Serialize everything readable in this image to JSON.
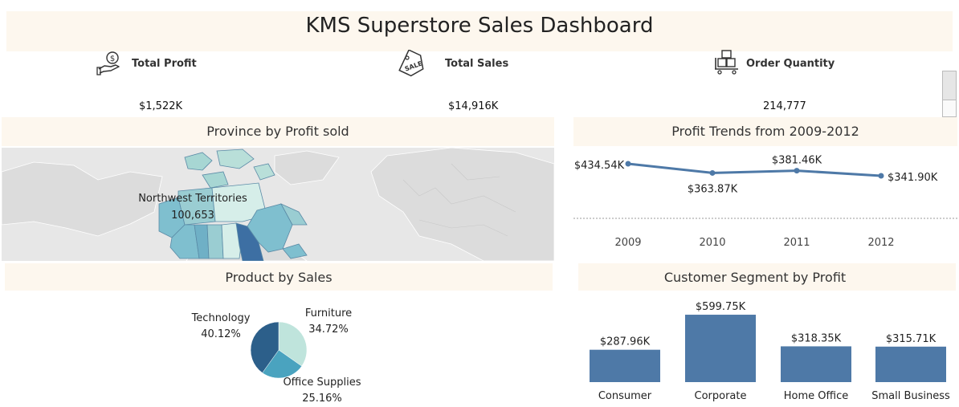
{
  "dashboard": {
    "title": "KMS Superstore Sales Dashboard"
  },
  "kpis": {
    "profit": {
      "label": "Total Profit",
      "value": "$1,522K",
      "icon": "hand-dollar-icon"
    },
    "sales": {
      "label": "Total Sales",
      "value": "$14,916K",
      "icon": "sale-tag-icon"
    },
    "quantity": {
      "label": "Order Quantity",
      "value": "214,777",
      "icon": "boxes-cart-icon"
    }
  },
  "panels": {
    "map": "Province by Profit sold",
    "trend": "Profit Trends from 2009-2012",
    "product": "Product by Sales",
    "segment": "Customer Segment by Profit"
  },
  "chart_data": [
    {
      "type": "map",
      "title": "Province by Profit sold",
      "highlight": {
        "label": "Northwest Territories",
        "value": "100,653"
      },
      "colors": {
        "low": "#d6eee9",
        "mid": "#7fbfcf",
        "high": "#3d6fa3"
      }
    },
    {
      "type": "line",
      "title": "Profit Trends from 2009-2012",
      "x": [
        "2009",
        "2010",
        "2011",
        "2012"
      ],
      "values": [
        434.54,
        363.87,
        381.46,
        341.9
      ],
      "data_labels": [
        "$434.54K",
        "$363.87K",
        "$381.46K",
        "$341.90K"
      ],
      "color": "#4e79a7"
    },
    {
      "type": "pie",
      "title": "Product by Sales",
      "slices": [
        {
          "name": "Furniture",
          "percent": 34.72,
          "label": "34.72%",
          "color": "#bfe4dc"
        },
        {
          "name": "Office Supplies",
          "percent": 25.16,
          "label": "25.16%",
          "color": "#4aa3bf"
        },
        {
          "name": "Technology",
          "percent": 40.12,
          "label": "40.12%",
          "color": "#2c5f8a"
        }
      ]
    },
    {
      "type": "bar",
      "title": "Customer Segment by Profit",
      "categories": [
        "Consumer",
        "Corporate",
        "Home Office",
        "Small Business"
      ],
      "values": [
        287.96,
        599.75,
        318.35,
        315.71
      ],
      "data_labels": [
        "$287.96K",
        "$599.75K",
        "$318.35K",
        "$315.71K"
      ],
      "color": "#4e79a7",
      "ylim": [
        0,
        650
      ]
    }
  ]
}
